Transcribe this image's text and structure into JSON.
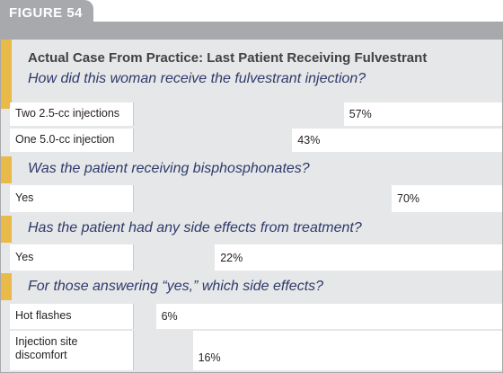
{
  "figure_label": "FIGURE 54",
  "chart_data": {
    "type": "bar",
    "title": "Actual Case From Practice: Last Patient Receiving Fulvestrant",
    "unit": "%",
    "sections": [
      {
        "question": "How did this woman receive the fulvestrant injection?",
        "items": [
          {
            "label": "Two 2.5-cc injections",
            "value": 57,
            "value_text": "57%"
          },
          {
            "label": "One 5.0-cc injection",
            "value": 43,
            "value_text": "43%"
          }
        ]
      },
      {
        "question": "Was the patient receiving bisphosphonates?",
        "items": [
          {
            "label": "Yes",
            "value": 70,
            "value_text": "70%"
          }
        ]
      },
      {
        "question": "Has the patient had any side effects from treatment?",
        "items": [
          {
            "label": "Yes",
            "value": 22,
            "value_text": "22%"
          }
        ]
      },
      {
        "question": "For those answering “yes,” which side effects?",
        "items": [
          {
            "label": "Hot flashes",
            "value": 6,
            "value_text": "6%"
          },
          {
            "label": "Injection site discomfort",
            "value": 16,
            "value_text": "16%"
          }
        ]
      }
    ]
  }
}
